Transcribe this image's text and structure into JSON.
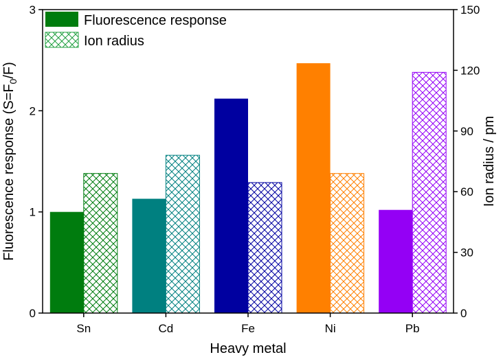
{
  "chart_data": {
    "type": "bar",
    "categories": [
      "Sn",
      "Cd",
      "Fe",
      "Ni",
      "Pb"
    ],
    "xlabel": "Heavy metal",
    "ylabel_left_main": "Fluorescence response (S=F",
    "ylabel_left_sub": "0",
    "ylabel_left_tail": "/F)",
    "ylabel_right": "Ion radius / pm",
    "ylim_left": [
      0,
      3
    ],
    "yticks_left": [
      "0",
      "1",
      "2",
      "3"
    ],
    "ylim_right": [
      0,
      150
    ],
    "yticks_right": [
      "0",
      "30",
      "60",
      "90",
      "120",
      "150"
    ],
    "colors": [
      "#007c0e",
      "#008080",
      "#0000a0",
      "#ff8000",
      "#9400f5"
    ],
    "series": [
      {
        "name": "Fluorescence response",
        "axis": "left",
        "style": "solid",
        "legend_color": "#007c0e",
        "values": [
          1.0,
          1.13,
          2.12,
          2.47,
          1.02
        ]
      },
      {
        "name": "Ion radius",
        "axis": "right",
        "style": "crosshatch",
        "legend_color": "#20a040",
        "values": [
          69,
          78,
          64.5,
          69,
          119
        ]
      }
    ],
    "legend_position": "top-left",
    "grid": false
  }
}
